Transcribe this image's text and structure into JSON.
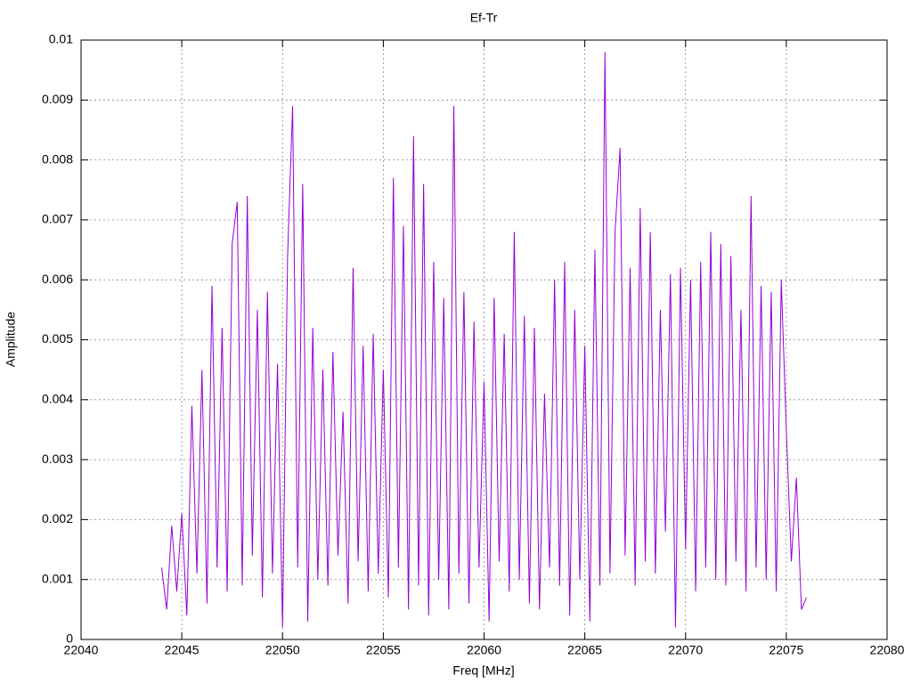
{
  "chart_data": {
    "type": "line",
    "title": "Ef-Tr",
    "x_label": "Freq [MHz]",
    "y_label": "Amplitude",
    "x": [
      22044,
      22044.25,
      22044.5,
      22044.75,
      22045,
      22045.25,
      22045.5,
      22045.75,
      22046,
      22046.25,
      22046.5,
      22046.75,
      22047,
      22047.25,
      22047.5,
      22047.75,
      22048,
      22048.25,
      22048.5,
      22048.75,
      22049,
      22049.25,
      22049.5,
      22049.75,
      22050,
      22050.25,
      22050.5,
      22050.75,
      22051,
      22051.25,
      22051.5,
      22051.75,
      22052,
      22052.25,
      22052.5,
      22052.75,
      22053,
      22053.25,
      22053.5,
      22053.75,
      22054,
      22054.25,
      22054.5,
      22054.75,
      22055,
      22055.25,
      22055.5,
      22055.75,
      22056,
      22056.25,
      22056.5,
      22056.75,
      22057,
      22057.25,
      22057.5,
      22057.75,
      22058,
      22058.25,
      22058.5,
      22058.75,
      22059,
      22059.25,
      22059.5,
      22059.75,
      22060,
      22060.25,
      22060.5,
      22060.75,
      22061,
      22061.25,
      22061.5,
      22061.75,
      22062,
      22062.25,
      22062.5,
      22062.75,
      22063,
      22063.25,
      22063.5,
      22063.75,
      22064,
      22064.25,
      22064.5,
      22064.75,
      22065,
      22065.25,
      22065.5,
      22065.75,
      22066,
      22066.25,
      22066.5,
      22066.75,
      22067,
      22067.25,
      22067.5,
      22067.75,
      22068,
      22068.25,
      22068.5,
      22068.75,
      22069,
      22069.25,
      22069.5,
      22069.75,
      22070,
      22070.25,
      22070.5,
      22070.75,
      22071,
      22071.25,
      22071.5,
      22071.75,
      22072,
      22072.25,
      22072.5,
      22072.75,
      22073,
      22073.25,
      22073.5,
      22073.75,
      22074,
      22074.25,
      22074.5,
      22074.75,
      22075,
      22075.25,
      22075.5,
      22075.75,
      22076
    ],
    "series": [
      {
        "name": "Ef-Tr",
        "color": "#9400d3",
        "values": [
          0.0012,
          0.0005,
          0.0019,
          0.0008,
          0.0021,
          0.0004,
          0.0039,
          0.0011,
          0.0045,
          0.0006,
          0.0059,
          0.0012,
          0.0052,
          0.0008,
          0.0066,
          0.0073,
          0.0009,
          0.0074,
          0.0014,
          0.0055,
          0.0007,
          0.0058,
          0.0011,
          0.0046,
          0.0002,
          0.0064,
          0.0089,
          0.0012,
          0.0076,
          0.0003,
          0.0052,
          0.001,
          0.0045,
          0.0009,
          0.0048,
          0.0014,
          0.0038,
          0.0006,
          0.0062,
          0.0013,
          0.0049,
          0.0008,
          0.0051,
          0.0011,
          0.0045,
          0.0007,
          0.0077,
          0.0012,
          0.0069,
          0.0005,
          0.0084,
          0.0009,
          0.0076,
          0.0004,
          0.0063,
          0.001,
          0.0057,
          0.0005,
          0.0089,
          0.0011,
          0.0058,
          0.0006,
          0.0053,
          0.0012,
          0.0043,
          0.0003,
          0.0057,
          0.0013,
          0.0051,
          0.0008,
          0.0068,
          0.001,
          0.0054,
          0.0006,
          0.0052,
          0.0005,
          0.0041,
          0.0012,
          0.006,
          0.0009,
          0.0063,
          0.0004,
          0.0055,
          0.001,
          0.0049,
          0.0003,
          0.0065,
          0.0009,
          0.0098,
          0.0011,
          0.0068,
          0.0082,
          0.0014,
          0.0062,
          0.0009,
          0.0072,
          0.0013,
          0.0068,
          0.0011,
          0.0055,
          0.0018,
          0.0061,
          0.0002,
          0.0062,
          0.0015,
          0.006,
          0.0008,
          0.0063,
          0.0012,
          0.0068,
          0.001,
          0.0066,
          0.0009,
          0.0064,
          0.0013,
          0.0055,
          0.0008,
          0.0074,
          0.0012,
          0.0059,
          0.001,
          0.0058,
          0.0008,
          0.006,
          0.0035,
          0.0013,
          0.0027,
          0.0005,
          0.0007
        ]
      }
    ],
    "xlim": [
      22040,
      22080
    ],
    "xticks": [
      22040,
      22045,
      22050,
      22055,
      22060,
      22065,
      22070,
      22075,
      22080
    ],
    "ylim": [
      0,
      0.01
    ],
    "yticks": [
      0,
      0.001,
      0.002,
      0.003,
      0.004,
      0.005,
      0.006,
      0.007,
      0.008,
      0.009,
      0.01
    ],
    "grid": true
  }
}
